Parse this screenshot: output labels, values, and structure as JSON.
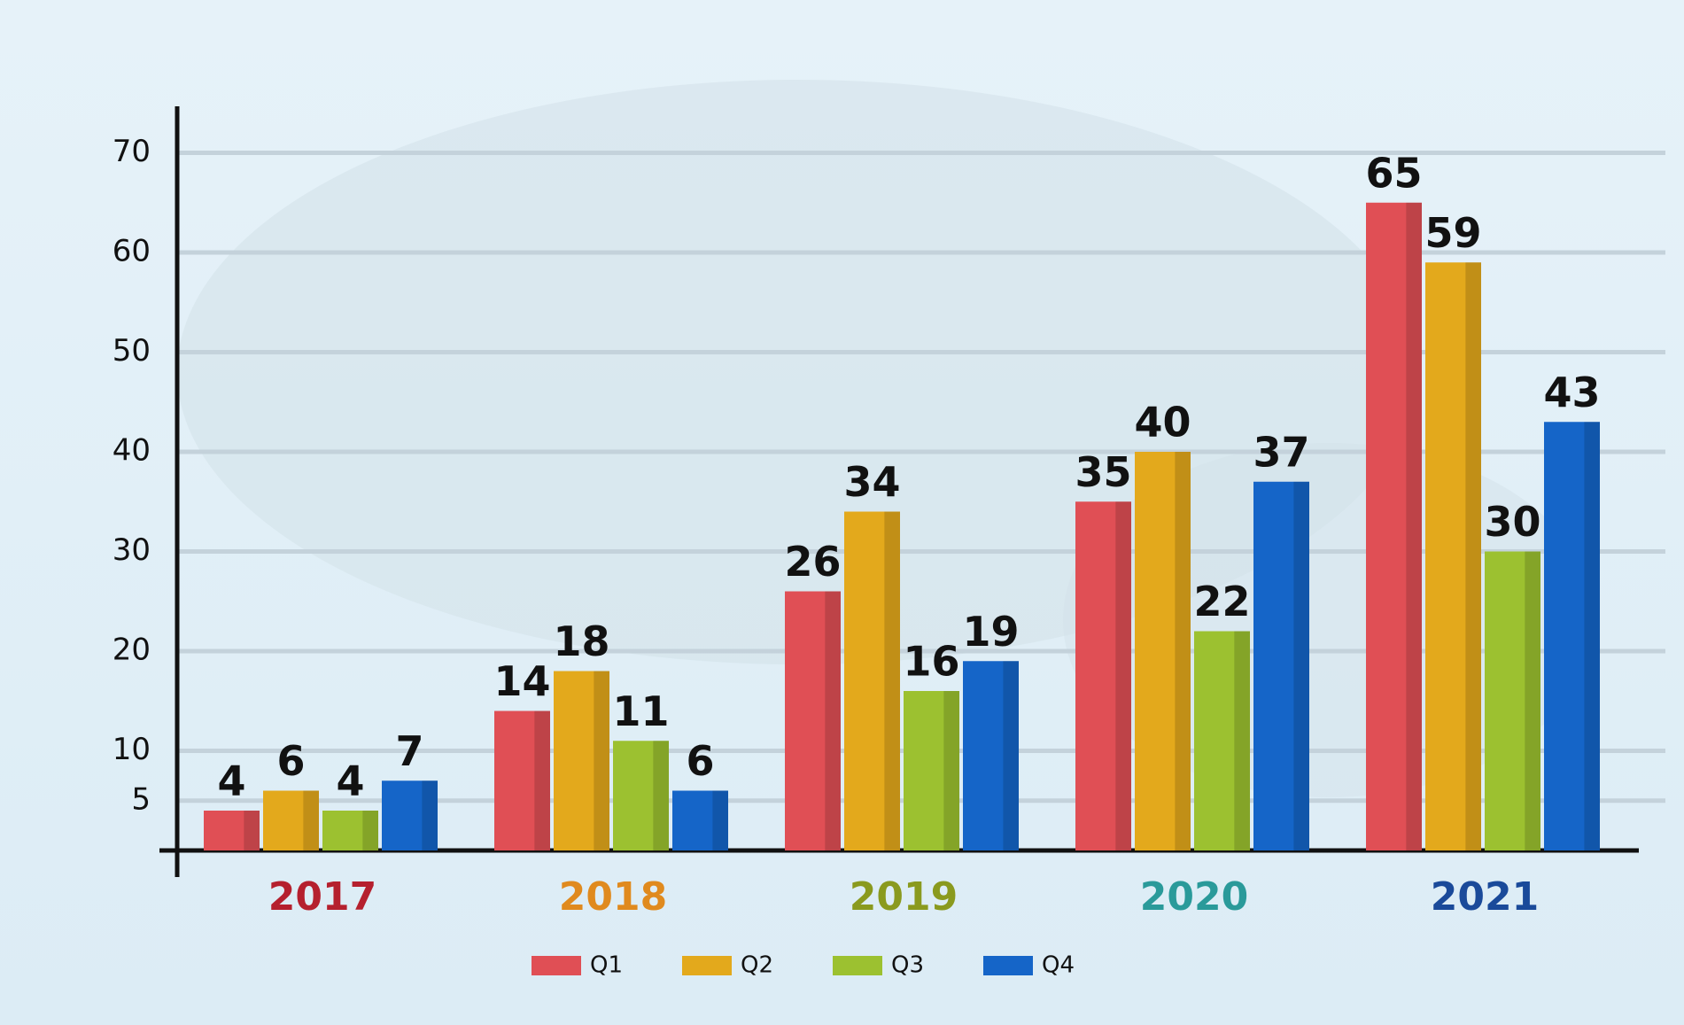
{
  "chart_data": {
    "type": "bar",
    "categories": [
      "2017",
      "2018",
      "2019",
      "2020",
      "2021"
    ],
    "category_colors": [
      "#b5202e",
      "#e08a1e",
      "#8a9a1e",
      "#2a9a9a",
      "#1a4a9a"
    ],
    "series": [
      {
        "name": "Q1",
        "color": "#e04f55",
        "values": [
          4,
          14,
          26,
          35,
          65
        ]
      },
      {
        "name": "Q2",
        "color": "#e3a91c",
        "values": [
          6,
          18,
          34,
          40,
          59
        ]
      },
      {
        "name": "Q3",
        "color": "#9cc130",
        "values": [
          4,
          11,
          16,
          22,
          30
        ]
      },
      {
        "name": "Q4",
        "color": "#1565c8",
        "values": [
          7,
          6,
          19,
          37,
          43
        ]
      }
    ],
    "ylim": [
      0,
      72
    ],
    "yticks": [
      5,
      10,
      20,
      30,
      40,
      50,
      60,
      70
    ],
    "grid": true,
    "legend": "bottom"
  }
}
